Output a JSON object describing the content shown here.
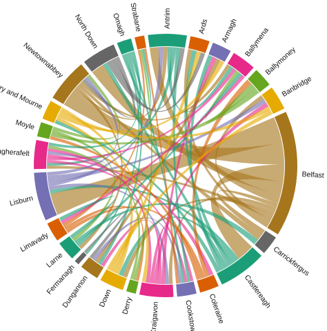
{
  "title": "",
  "chart_data": {
    "type": "chord",
    "title": "",
    "groups": [
      {
        "name": "Antrim",
        "color": "#1b9e77",
        "weight": 8
      },
      {
        "name": "Ards",
        "color": "#d95f02",
        "weight": 4
      },
      {
        "name": "Armagh",
        "color": "#7570b3",
        "weight": 4
      },
      {
        "name": "Ballymena",
        "color": "#e7298a",
        "weight": 5
      },
      {
        "name": "Ballymoney",
        "color": "#66a61e",
        "weight": 4
      },
      {
        "name": "Banbridge",
        "color": "#e6ab02",
        "weight": 5
      },
      {
        "name": "Belfast",
        "color": "#a6761d",
        "weight": 26
      },
      {
        "name": "Carrickfergus",
        "color": "#666666",
        "weight": 4
      },
      {
        "name": "Castlereagh",
        "color": "#1b9e77",
        "weight": 10
      },
      {
        "name": "Coleraine",
        "color": "#d95f02",
        "weight": 4
      },
      {
        "name": "Cookstown",
        "color": "#7570b3",
        "weight": 4
      },
      {
        "name": "Craigavon",
        "color": "#e7298a",
        "weight": 7
      },
      {
        "name": "Derry",
        "color": "#66a61e",
        "weight": 2
      },
      {
        "name": "Down",
        "color": "#e6ab02",
        "weight": 5
      },
      {
        "name": "Dungannon",
        "color": "#a6761d",
        "weight": 4
      },
      {
        "name": "Fermanagh",
        "color": "#666666",
        "weight": 1
      },
      {
        "name": "Larne",
        "color": "#1b9e77",
        "weight": 4
      },
      {
        "name": "Limavady",
        "color": "#d95f02",
        "weight": 4
      },
      {
        "name": "Lisburn",
        "color": "#7570b3",
        "weight": 10
      },
      {
        "name": "Magherafelt",
        "color": "#e7298a",
        "weight": 6
      },
      {
        "name": "Moyle",
        "color": "#66a61e",
        "weight": 3
      },
      {
        "name": "Newry and Mourne",
        "color": "#e6ab02",
        "weight": 4
      },
      {
        "name": "Newtownabbey",
        "color": "#a6761d",
        "weight": 9
      },
      {
        "name": "North Down",
        "color": "#666666",
        "weight": 7
      },
      {
        "name": "Omagh",
        "color": "#1b9e77",
        "weight": 3
      },
      {
        "name": "Strabane",
        "color": "#d95f02",
        "weight": 2
      }
    ],
    "links": [
      [
        "Belfast",
        "Lisburn",
        6
      ],
      [
        "Belfast",
        "Newtownabbey",
        5
      ],
      [
        "Belfast",
        "Castlereagh",
        4
      ],
      [
        "Belfast",
        "North Down",
        3
      ],
      [
        "Belfast",
        "Antrim",
        2
      ],
      [
        "Belfast",
        "Carrickfergus",
        1
      ],
      [
        "Belfast",
        "Craigavon",
        1
      ],
      [
        "Belfast",
        "Down",
        1
      ],
      [
        "Belfast",
        "Magherafelt",
        1
      ],
      [
        "Belfast",
        "Banbridge",
        1
      ],
      [
        "Belfast",
        "Ards",
        1
      ],
      [
        "Castlereagh",
        "Lisburn",
        1
      ],
      [
        "Castlereagh",
        "Down",
        1
      ],
      [
        "Castlereagh",
        "Ards",
        1
      ],
      [
        "Castlereagh",
        "North Down",
        1
      ],
      [
        "Castlereagh",
        "Armagh",
        1
      ],
      [
        "Castlereagh",
        "Newry and Mourne",
        1
      ],
      [
        "Lisburn",
        "Craigavon",
        1
      ],
      [
        "Lisburn",
        "Antrim",
        1
      ],
      [
        "Lisburn",
        "Banbridge",
        1
      ],
      [
        "Newtownabbey",
        "Antrim",
        1
      ],
      [
        "Newtownabbey",
        "Larne",
        1
      ],
      [
        "Newtownabbey",
        "Carrickfergus",
        1
      ],
      [
        "Newtownabbey",
        "Ballymena",
        1
      ],
      [
        "Craigavon",
        "Armagh",
        1
      ],
      [
        "Craigavon",
        "Dungannon",
        1
      ],
      [
        "Craigavon",
        "Banbridge",
        1
      ],
      [
        "Craigavon",
        "Cookstown",
        1
      ],
      [
        "Antrim",
        "Ballymena",
        1
      ],
      [
        "Antrim",
        "Magherafelt",
        1
      ],
      [
        "Antrim",
        "Cookstown",
        1
      ],
      [
        "Magherafelt",
        "Cookstown",
        1
      ],
      [
        "Magherafelt",
        "Ballymena",
        1
      ],
      [
        "Magherafelt",
        "Coleraine",
        1
      ],
      [
        "Coleraine",
        "Ballymoney",
        1
      ],
      [
        "Coleraine",
        "Limavady",
        1
      ],
      [
        "Coleraine",
        "Moyle",
        1
      ],
      [
        "Ballymoney",
        "Ballymena",
        1
      ],
      [
        "Ballymoney",
        "Moyle",
        1
      ],
      [
        "Limavady",
        "Derry",
        1
      ],
      [
        "Limavady",
        "Strabane",
        1
      ],
      [
        "Derry",
        "Strabane",
        1
      ],
      [
        "Omagh",
        "Strabane",
        1
      ],
      [
        "Omagh",
        "Fermanagh",
        1
      ],
      [
        "Omagh",
        "Dungannon",
        1
      ],
      [
        "Omagh",
        "Cookstown",
        1
      ],
      [
        "Dungannon",
        "Armagh",
        1
      ],
      [
        "Down",
        "Newry and Mourne",
        1
      ],
      [
        "Down",
        "Ards",
        1
      ],
      [
        "North Down",
        "Ards",
        1
      ],
      [
        "North Down",
        "Antrim",
        1
      ],
      [
        "North Down",
        "Newtownabbey",
        1
      ],
      [
        "Larne",
        "Ballymena",
        1
      ],
      [
        "Larne",
        "Carrickfergus",
        1
      ],
      [
        "Newry and Mourne",
        "Armagh",
        1
      ],
      [
        "Newry and Mourne",
        "Banbridge",
        1
      ],
      [
        "Moyle",
        "Larne",
        1
      ],
      [
        "Ballymena",
        "Limavady",
        1
      ],
      [
        "Banbridge",
        "Down",
        1
      ],
      [
        "Lisburn",
        "Magherafelt",
        1
      ],
      [
        "Lisburn",
        "Newtownabbey",
        1
      ],
      [
        "Craigavon",
        "Magherafelt",
        1
      ],
      [
        "Cookstown",
        "Dungannon",
        1
      ],
      [
        "Derry",
        "Magherafelt",
        1
      ],
      [
        "Fermanagh",
        "Dungannon",
        1
      ],
      [
        "Larne",
        "Limavady",
        1
      ],
      [
        "Moyle",
        "Newtownabbey",
        1
      ],
      [
        "Newry and Mourne",
        "Craigavon",
        1
      ],
      [
        "Strabane",
        "Cookstown",
        1
      ],
      [
        "Omagh",
        "Magherafelt",
        1
      ]
    ]
  }
}
